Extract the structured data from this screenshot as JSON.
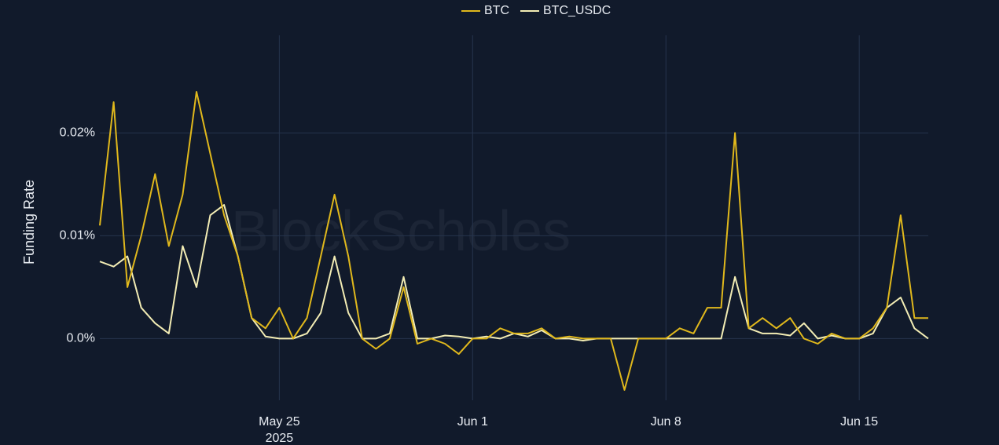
{
  "chart_data": {
    "type": "line",
    "y_label": "Funding Rate",
    "watermark": "BlockScholes",
    "x": [
      "2025-05-18T12:00",
      "2025-05-19T00:00",
      "2025-05-19T12:00",
      "2025-05-20T00:00",
      "2025-05-20T12:00",
      "2025-05-21T00:00",
      "2025-05-21T12:00",
      "2025-05-22T00:00",
      "2025-05-22T12:00",
      "2025-05-23T00:00",
      "2025-05-23T12:00",
      "2025-05-24T00:00",
      "2025-05-24T12:00",
      "2025-05-25T00:00",
      "2025-05-25T12:00",
      "2025-05-26T00:00",
      "2025-05-26T12:00",
      "2025-05-27T00:00",
      "2025-05-27T12:00",
      "2025-05-28T00:00",
      "2025-05-28T12:00",
      "2025-05-29T00:00",
      "2025-05-29T12:00",
      "2025-05-30T00:00",
      "2025-05-30T12:00",
      "2025-05-31T00:00",
      "2025-05-31T12:00",
      "2025-06-01T00:00",
      "2025-06-01T12:00",
      "2025-06-02T00:00",
      "2025-06-02T12:00",
      "2025-06-03T00:00",
      "2025-06-03T12:00",
      "2025-06-04T00:00",
      "2025-06-04T12:00",
      "2025-06-05T00:00",
      "2025-06-05T12:00",
      "2025-06-06T00:00",
      "2025-06-06T12:00",
      "2025-06-07T00:00",
      "2025-06-07T12:00",
      "2025-06-08T00:00",
      "2025-06-08T12:00",
      "2025-06-09T00:00",
      "2025-06-09T12:00",
      "2025-06-10T00:00",
      "2025-06-10T12:00",
      "2025-06-11T00:00",
      "2025-06-11T12:00",
      "2025-06-12T00:00",
      "2025-06-12T12:00",
      "2025-06-13T00:00",
      "2025-06-13T12:00",
      "2025-06-14T00:00",
      "2025-06-14T12:00",
      "2025-06-15T00:00",
      "2025-06-15T12:00",
      "2025-06-16T00:00",
      "2025-06-16T12:00",
      "2025-06-17T00:00",
      "2025-06-17T12:00"
    ],
    "series": [
      {
        "name": "BTC",
        "color": "#e0b81c",
        "values": [
          0.011,
          0.023,
          0.005,
          0.01,
          0.016,
          0.009,
          0.014,
          0.024,
          0.018,
          0.012,
          0.008,
          0.002,
          0.001,
          0.003,
          0.0,
          0.002,
          0.008,
          0.014,
          0.008,
          0.0,
          -0.001,
          0.0,
          0.005,
          -0.0005,
          0.0,
          -0.0005,
          -0.0015,
          0.0,
          0.0,
          0.001,
          0.0005,
          0.0005,
          0.001,
          0.0,
          0.0002,
          0.0,
          0.0,
          0.0,
          -0.005,
          0.0,
          0.0,
          0.0,
          0.001,
          0.0005,
          0.003,
          0.003,
          0.02,
          0.001,
          0.002,
          0.001,
          0.002,
          0.0,
          -0.0005,
          0.0005,
          0.0,
          0.0,
          0.001,
          0.003,
          0.012,
          0.002,
          0.002
        ]
      },
      {
        "name": "BTC_USDC",
        "color": "#f2ecb4",
        "values": [
          0.0075,
          0.007,
          0.008,
          0.003,
          0.0015,
          0.0005,
          0.009,
          0.005,
          0.012,
          0.013,
          0.008,
          0.002,
          0.0002,
          0.0,
          0.0,
          0.0005,
          0.0025,
          0.008,
          0.0025,
          0.0,
          0.0,
          0.0005,
          0.006,
          0.0,
          0.0,
          0.0003,
          0.0002,
          0.0,
          0.0002,
          0.0,
          0.0005,
          0.0002,
          0.0008,
          0.0,
          0.0,
          -0.0002,
          0.0,
          0.0,
          0.0,
          0.0,
          0.0,
          0.0,
          0.0,
          0.0,
          0.0,
          0.0,
          0.006,
          0.001,
          0.0005,
          0.0005,
          0.0003,
          0.0015,
          0.0,
          0.0003,
          0.0,
          0.0,
          0.0005,
          0.003,
          0.004,
          0.001,
          0.0
        ]
      }
    ],
    "xlim": [
      "2025-05-18T12:00",
      "2025-06-17T12:00"
    ],
    "xticks": [
      {
        "value": "2025-05-25",
        "label": "May 25",
        "sublabel": "2025"
      },
      {
        "value": "2025-06-01",
        "label": "Jun 1"
      },
      {
        "value": "2025-06-08",
        "label": "Jun 8"
      },
      {
        "value": "2025-06-15",
        "label": "Jun 15"
      }
    ],
    "ylim": [
      -0.006,
      0.0295
    ],
    "yticks": [
      {
        "value": 0,
        "label": "0.0%"
      },
      {
        "value": 0.01,
        "label": "0.01%"
      },
      {
        "value": 0.02,
        "label": "0.02%"
      }
    ],
    "grid": true,
    "legend": "top"
  }
}
